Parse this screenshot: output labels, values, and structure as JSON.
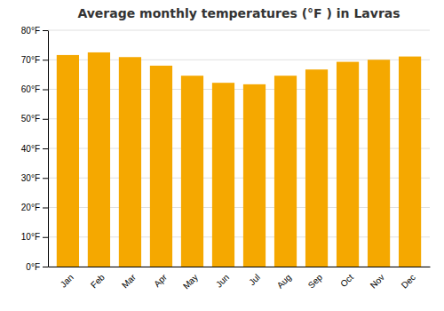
{
  "chart_data": {
    "type": "bar",
    "title": "Average monthly temperatures (°F ) in Lavras",
    "categories": [
      "Jan",
      "Feb",
      "Mar",
      "Apr",
      "May",
      "Jun",
      "Jul",
      "Aug",
      "Sep",
      "Oct",
      "Nov",
      "Dec"
    ],
    "values": [
      71.6,
      72.5,
      70.9,
      68.0,
      64.6,
      62.2,
      61.7,
      64.6,
      66.7,
      69.3,
      70.0,
      71.1
    ],
    "color": "#F5A800",
    "ylim": [
      0,
      80
    ],
    "yticks": [
      {
        "value": 0,
        "label": "0°F"
      },
      {
        "value": 10,
        "label": "10°F"
      },
      {
        "value": 20,
        "label": "20°F"
      },
      {
        "value": 30,
        "label": "30°F"
      },
      {
        "value": 40,
        "label": "40°F"
      },
      {
        "value": 50,
        "label": "50°F"
      },
      {
        "value": 60,
        "label": "60°F"
      },
      {
        "value": 70,
        "label": "70°F"
      },
      {
        "value": 80,
        "label": "80°F"
      }
    ],
    "grid": true
  }
}
